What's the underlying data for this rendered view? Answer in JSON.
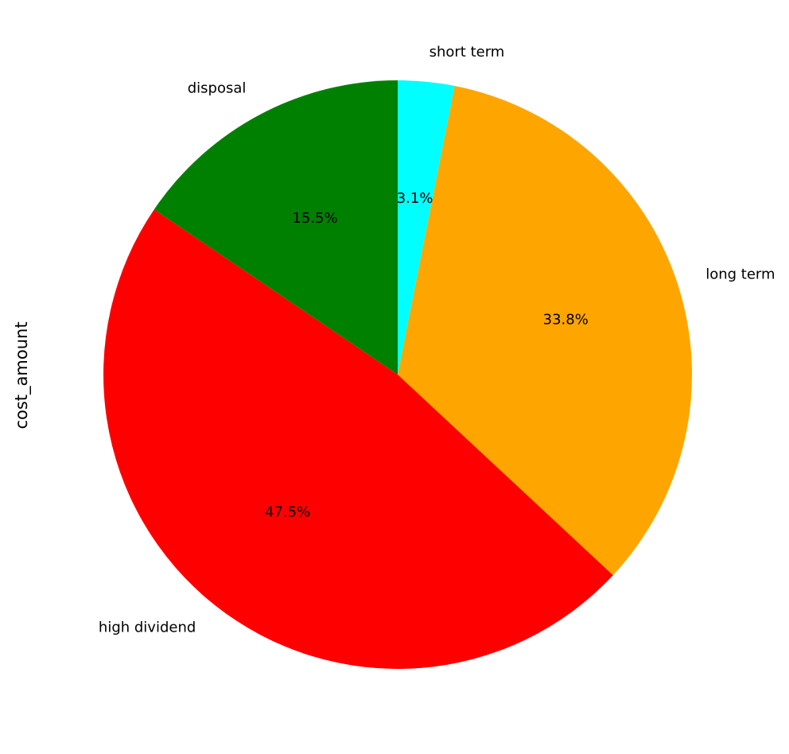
{
  "chart_data": {
    "type": "pie",
    "ylabel": "cost_amount",
    "start_angle_deg": 90,
    "direction": "clockwise",
    "slices": [
      {
        "label": "short term",
        "value": 3.1,
        "pct_label": "3.1%",
        "color": "#00FFFF"
      },
      {
        "label": "long term",
        "value": 33.8,
        "pct_label": "33.8%",
        "color": "#FFA500"
      },
      {
        "label": "high dividend",
        "value": 47.5,
        "pct_label": "47.5%",
        "color": "#FF0000"
      },
      {
        "label": "disposal",
        "value": 15.5,
        "pct_label": "15.5%",
        "color": "#008000"
      }
    ]
  }
}
